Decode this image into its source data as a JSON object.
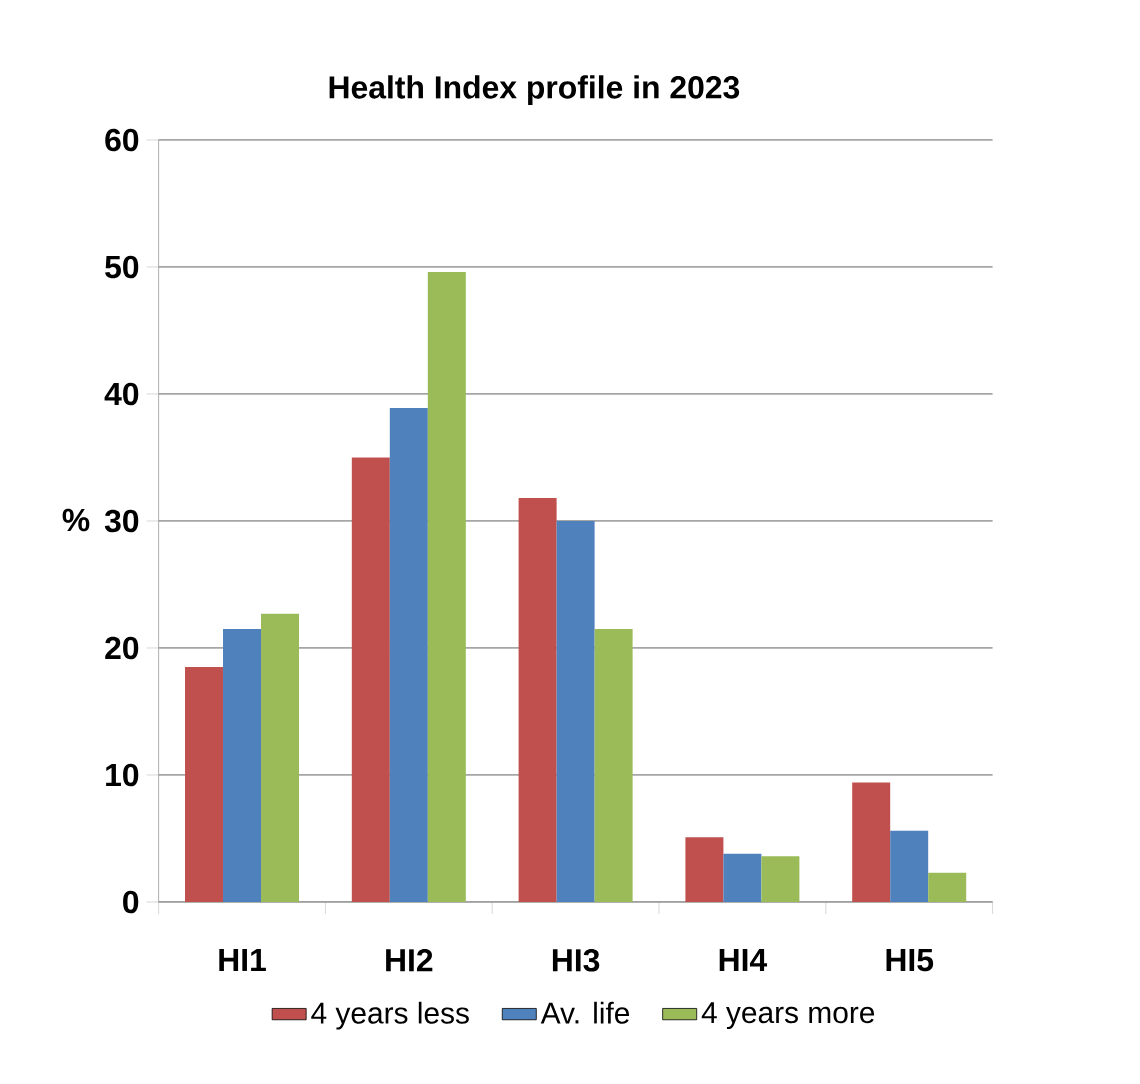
{
  "chart_data": {
    "type": "bar",
    "title": "Health Index profile in 2023",
    "ylabel": "%",
    "categories": [
      "HI1",
      "HI2",
      "HI3",
      "HI4",
      "HI5"
    ],
    "series": [
      {
        "name": "4 years less",
        "color": "#c0504d",
        "values": [
          18.5,
          35.0,
          31.8,
          5.1,
          9.4
        ]
      },
      {
        "name": "Av. life",
        "color": "#4f81bd",
        "values": [
          21.5,
          38.9,
          30.0,
          3.8,
          5.6
        ]
      },
      {
        "name": "4 years more",
        "color": "#9bbb59",
        "values": [
          22.7,
          49.6,
          21.5,
          3.6,
          2.3
        ]
      }
    ],
    "ylim": [
      0,
      60
    ],
    "yticks": [
      0,
      10,
      20,
      30,
      40,
      50,
      60
    ],
    "grid": "y",
    "legend": "bottom"
  }
}
